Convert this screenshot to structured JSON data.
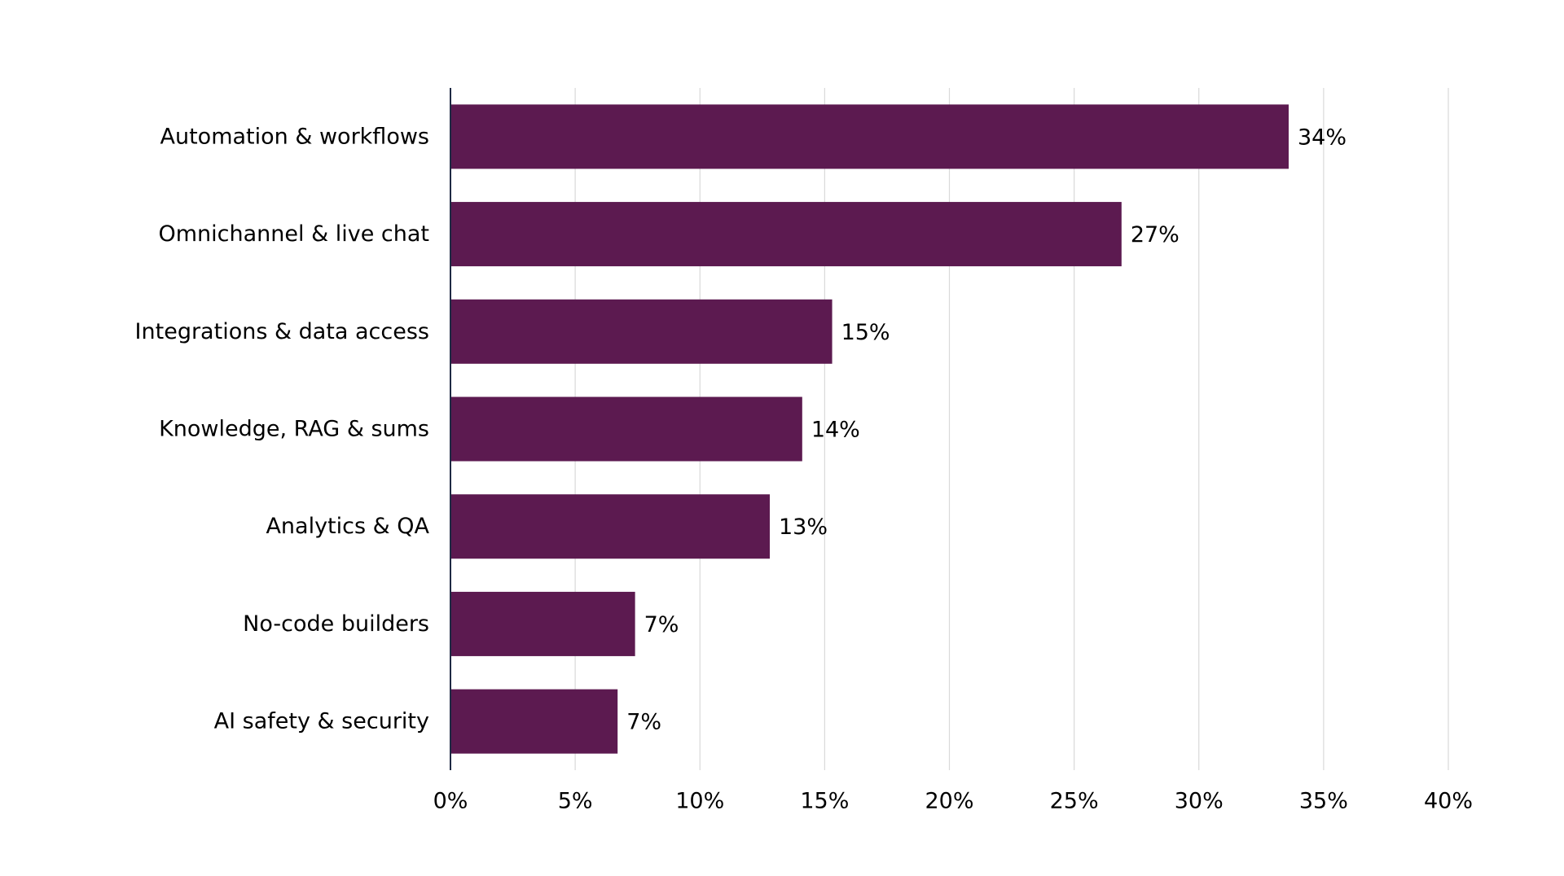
{
  "chart_data": {
    "type": "bar",
    "orientation": "horizontal",
    "categories": [
      "Automation & workflows",
      "Omnichannel & live chat",
      "Integrations & data access",
      "Knowledge, RAG & sums",
      "Analytics & QA",
      "No-code builders",
      "AI safety & security"
    ],
    "values": [
      33.6,
      26.9,
      15.3,
      14.1,
      12.8,
      7.4,
      6.7
    ],
    "data_labels": [
      "34%",
      "27%",
      "15%",
      "14%",
      "13%",
      "7%",
      "7%"
    ],
    "title": "",
    "xlabel": "",
    "ylabel": "",
    "xlim": [
      0,
      40
    ],
    "x_ticks": [
      0,
      5,
      10,
      15,
      20,
      25,
      30,
      35,
      40
    ],
    "x_tick_labels": [
      "0%",
      "5%",
      "10%",
      "15%",
      "20%",
      "25%",
      "30%",
      "35%",
      "40%"
    ],
    "grid": "vertical",
    "legend": "none",
    "bar_color": "#5c1a50"
  }
}
